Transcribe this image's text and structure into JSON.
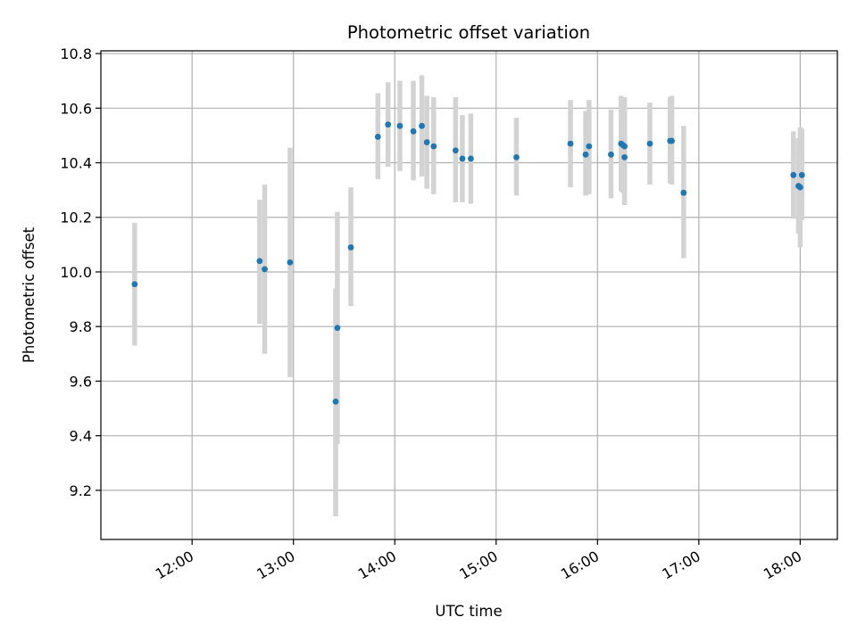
{
  "chart_data": {
    "type": "scatter",
    "title": "Photometric offset variation",
    "xlabel": "UTC time",
    "ylabel": "Photometric offset",
    "x_unit": "UTC",
    "xlim": [
      "11:06",
      "18:22"
    ],
    "ylim": [
      9.02,
      10.81
    ],
    "grid": true,
    "colors": {
      "points": "#1f77b4",
      "error_bars": "#d3d3d3",
      "grid": "#b0b0b0"
    },
    "x_ticks": [
      "12:00",
      "13:00",
      "14:00",
      "15:00",
      "16:00",
      "17:00",
      "18:00"
    ],
    "y_ticks": [
      9.2,
      9.4,
      9.6,
      9.8,
      10.0,
      10.2,
      10.4,
      10.6,
      10.8
    ],
    "y_tick_labels": [
      "9.2",
      "9.4",
      "9.6",
      "9.8",
      "10.0",
      "10.2",
      "10.4",
      "10.6",
      "10.8"
    ],
    "points": [
      {
        "t": "11:26",
        "y": 9.955,
        "low": 9.73,
        "high": 10.18
      },
      {
        "t": "12:40",
        "y": 10.04,
        "low": 9.81,
        "high": 10.265
      },
      {
        "t": "12:43",
        "y": 10.01,
        "low": 9.7,
        "high": 10.32
      },
      {
        "t": "12:58",
        "y": 10.035,
        "low": 9.615,
        "high": 10.455
      },
      {
        "t": "13:25",
        "y": 9.525,
        "low": 9.105,
        "high": 9.94
      },
      {
        "t": "13:26",
        "y": 9.795,
        "low": 9.37,
        "high": 10.22
      },
      {
        "t": "13:34",
        "y": 10.09,
        "low": 9.875,
        "high": 10.31
      },
      {
        "t": "13:50",
        "y": 10.495,
        "low": 10.34,
        "high": 10.655
      },
      {
        "t": "13:56",
        "y": 10.54,
        "low": 10.385,
        "high": 10.695
      },
      {
        "t": "14:03",
        "y": 10.535,
        "low": 10.37,
        "high": 10.7
      },
      {
        "t": "14:11",
        "y": 10.515,
        "low": 10.335,
        "high": 10.7
      },
      {
        "t": "14:16",
        "y": 10.535,
        "low": 10.35,
        "high": 10.72
      },
      {
        "t": "14:19",
        "y": 10.475,
        "low": 10.305,
        "high": 10.645
      },
      {
        "t": "14:23",
        "y": 10.46,
        "low": 10.285,
        "high": 10.64
      },
      {
        "t": "14:36",
        "y": 10.445,
        "low": 10.255,
        "high": 10.64
      },
      {
        "t": "14:40",
        "y": 10.415,
        "low": 10.255,
        "high": 10.575
      },
      {
        "t": "14:45",
        "y": 10.415,
        "low": 10.25,
        "high": 10.58
      },
      {
        "t": "15:12",
        "y": 10.42,
        "low": 10.28,
        "high": 10.565
      },
      {
        "t": "15:44",
        "y": 10.47,
        "low": 10.31,
        "high": 10.63
      },
      {
        "t": "15:53",
        "y": 10.43,
        "low": 10.28,
        "high": 10.59
      },
      {
        "t": "15:55",
        "y": 10.46,
        "low": 10.285,
        "high": 10.63
      },
      {
        "t": "16:08",
        "y": 10.43,
        "low": 10.27,
        "high": 10.595
      },
      {
        "t": "16:14",
        "y": 10.47,
        "low": 10.295,
        "high": 10.645
      },
      {
        "t": "16:15",
        "y": 10.465,
        "low": 10.29,
        "high": 10.64
      },
      {
        "t": "16:16",
        "y": 10.42,
        "low": 10.245,
        "high": 10.6
      },
      {
        "t": "16:16",
        "y": 10.46,
        "low": 10.285,
        "high": 10.64
      },
      {
        "t": "16:31",
        "y": 10.47,
        "low": 10.32,
        "high": 10.62
      },
      {
        "t": "16:43",
        "y": 10.48,
        "low": 10.325,
        "high": 10.64
      },
      {
        "t": "16:44",
        "y": 10.48,
        "low": 10.32,
        "high": 10.645
      },
      {
        "t": "16:51",
        "y": 10.29,
        "low": 10.05,
        "high": 10.535
      },
      {
        "t": "17:56",
        "y": 10.355,
        "low": 10.195,
        "high": 10.515
      },
      {
        "t": "17:59",
        "y": 10.315,
        "low": 10.14,
        "high": 10.49
      },
      {
        "t": "18:00",
        "y": 10.31,
        "low": 10.09,
        "high": 10.53
      },
      {
        "t": "18:01",
        "y": 10.355,
        "low": 10.19,
        "high": 10.525
      }
    ]
  }
}
